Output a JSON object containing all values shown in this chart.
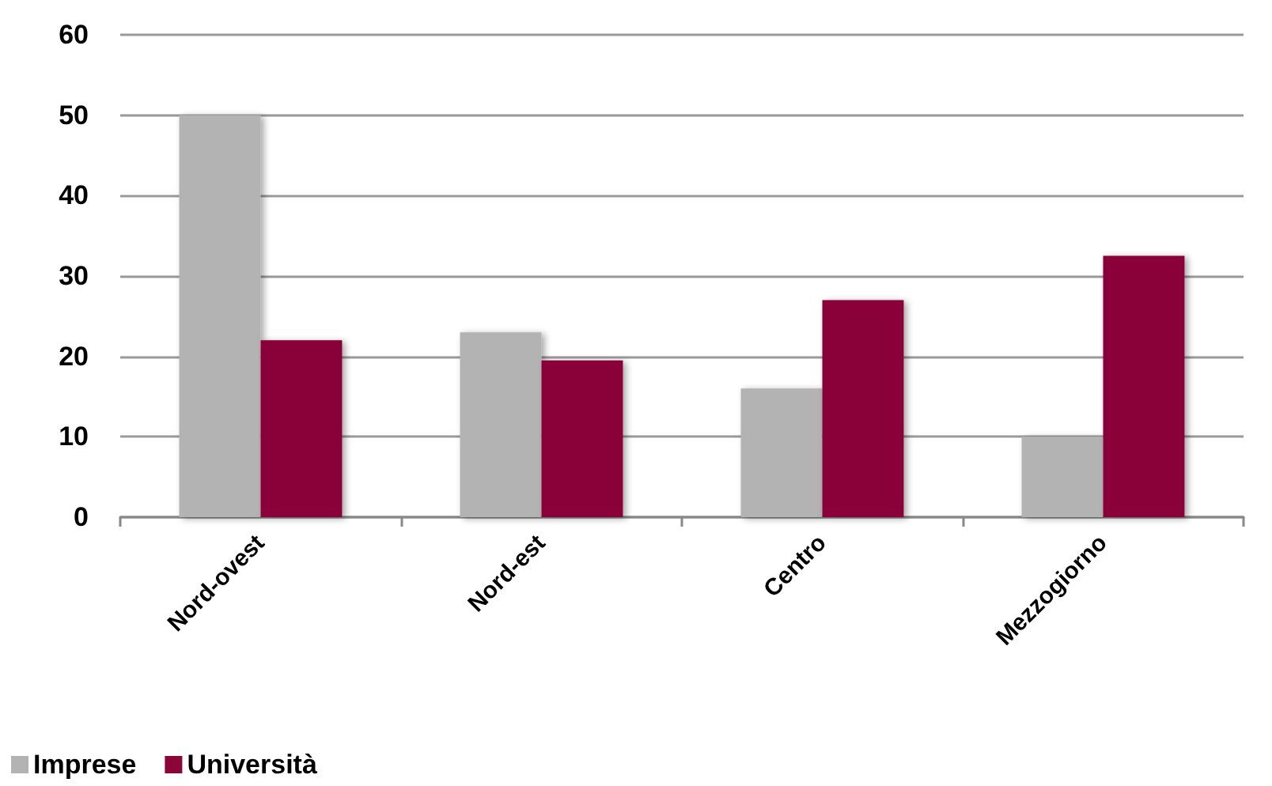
{
  "chart_data": {
    "type": "bar",
    "categories": [
      "Nord-ovest",
      "Nord-est",
      "Centro",
      "Mezzogiorno"
    ],
    "series": [
      {
        "name": "Imprese",
        "color": "#b3b3b3",
        "values": [
          50,
          23,
          16,
          10
        ]
      },
      {
        "name": "Università",
        "color": "#8a0638",
        "values": [
          22,
          19.5,
          27,
          32.5
        ]
      }
    ],
    "ylim": [
      0,
      60
    ],
    "yticks": [
      0,
      10,
      20,
      30,
      40,
      50,
      60
    ],
    "grid": "y",
    "legend": "bottom left"
  }
}
